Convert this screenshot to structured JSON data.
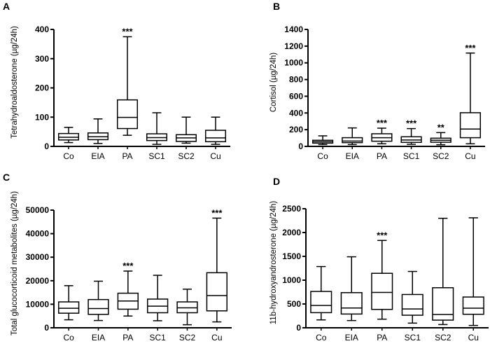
{
  "chart_data": [
    {
      "panel": "A",
      "type": "box",
      "ylabel": "Tetrahydroaldosterone (µg/24h)",
      "ylim": [
        0,
        400
      ],
      "yticks": [
        0,
        100,
        200,
        300,
        400
      ],
      "categories": [
        "Co",
        "EIA",
        "PA",
        "SC1",
        "SC2",
        "Cu"
      ],
      "boxes": [
        {
          "min": 13,
          "q1": 22,
          "median": 31,
          "q3": 44,
          "max": 65
        },
        {
          "min": 10,
          "q1": 23,
          "median": 33,
          "q3": 46,
          "max": 94
        },
        {
          "min": 38,
          "q1": 61,
          "median": 99,
          "q3": 159,
          "max": 375
        },
        {
          "min": 7,
          "q1": 20,
          "median": 30,
          "q3": 43,
          "max": 115
        },
        {
          "min": 11,
          "q1": 17,
          "median": 29,
          "q3": 40,
          "max": 100
        },
        {
          "min": 7,
          "q1": 16,
          "median": 29,
          "q3": 55,
          "max": 100
        }
      ],
      "significance": [
        "",
        "",
        "***",
        "",
        "",
        ""
      ]
    },
    {
      "panel": "B",
      "type": "box",
      "ylabel": "Cortisol (µg/24h)",
      "ylim": [
        0,
        1400
      ],
      "yticks": [
        0,
        200,
        400,
        600,
        800,
        1000,
        1200,
        1400
      ],
      "categories": [
        "Co",
        "EIA",
        "PA",
        "SC1",
        "SC2",
        "Cu"
      ],
      "boxes": [
        {
          "min": 22,
          "q1": 39,
          "median": 56,
          "q3": 73,
          "max": 126
        },
        {
          "min": 22,
          "q1": 45,
          "median": 64,
          "q3": 104,
          "max": 221
        },
        {
          "min": 31,
          "q1": 62,
          "median": 104,
          "q3": 151,
          "max": 218
        },
        {
          "min": 25,
          "q1": 48,
          "median": 76,
          "q3": 115,
          "max": 213
        },
        {
          "min": 20,
          "q1": 50,
          "median": 73,
          "q3": 98,
          "max": 165
        },
        {
          "min": 31,
          "q1": 104,
          "median": 207,
          "q3": 403,
          "max": 1117
        }
      ],
      "significance": [
        "",
        "",
        "***",
        "***",
        "**",
        "***"
      ]
    },
    {
      "panel": "C",
      "type": "box",
      "ylabel": "Total glucocorticoid metabolites (µg/24h)",
      "ylim": [
        0,
        50000
      ],
      "yticks": [
        0,
        10000,
        20000,
        30000,
        40000,
        50000
      ],
      "categories": [
        "Co",
        "EIA",
        "PA",
        "SC1",
        "SC2",
        "Cu"
      ],
      "boxes": [
        {
          "min": 3400,
          "q1": 6200,
          "median": 8300,
          "q3": 11000,
          "max": 17900
        },
        {
          "min": 3100,
          "q1": 5700,
          "median": 8200,
          "q3": 12000,
          "max": 19800
        },
        {
          "min": 5000,
          "q1": 7900,
          "median": 11400,
          "q3": 14700,
          "max": 24100
        },
        {
          "min": 3000,
          "q1": 6400,
          "median": 9200,
          "q3": 12200,
          "max": 22300
        },
        {
          "min": 1300,
          "q1": 6400,
          "median": 8500,
          "q3": 11000,
          "max": 16400
        },
        {
          "min": 2500,
          "q1": 7200,
          "median": 13700,
          "q3": 23400,
          "max": 46600
        }
      ],
      "significance": [
        "",
        "",
        "***",
        "",
        "",
        "***"
      ]
    },
    {
      "panel": "D",
      "type": "box",
      "ylabel": "11b-hydroxyandrosterone (µg/24h)",
      "ylim": [
        0,
        2500
      ],
      "yticks": [
        0,
        500,
        1000,
        1500,
        2000,
        2500
      ],
      "categories": [
        "Co",
        "EIA",
        "PA",
        "SC1",
        "SC2",
        "Cu"
      ],
      "boxes": [
        {
          "min": 166,
          "q1": 318,
          "median": 469,
          "q3": 763,
          "max": 1286
        },
        {
          "min": 152,
          "q1": 289,
          "median": 416,
          "q3": 738,
          "max": 1491
        },
        {
          "min": 181,
          "q1": 386,
          "median": 743,
          "q3": 1144,
          "max": 1834
        },
        {
          "min": 98,
          "q1": 264,
          "median": 396,
          "q3": 699,
          "max": 1183
        },
        {
          "min": 68,
          "q1": 161,
          "median": 279,
          "q3": 841,
          "max": 2299
        },
        {
          "min": 49,
          "q1": 284,
          "median": 411,
          "q3": 646,
          "max": 2309
        }
      ],
      "significance": [
        "",
        "",
        "***",
        "",
        "",
        ""
      ]
    }
  ]
}
